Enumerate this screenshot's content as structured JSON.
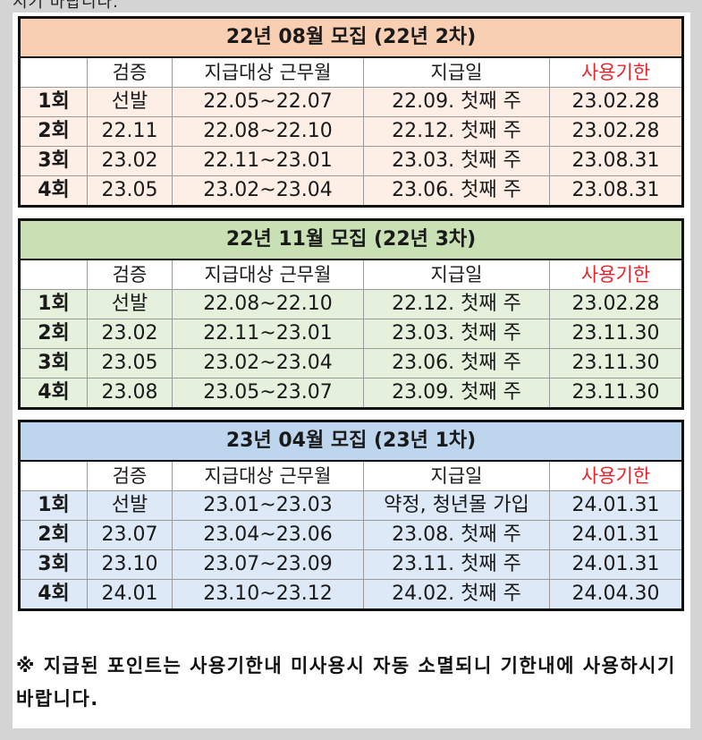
{
  "top_text": "시기 바랍니다.",
  "headers": [
    "검증",
    "지급대상 근무월",
    "지급일",
    "사용기한"
  ],
  "tables": [
    {
      "title": "22년 08월 모집 (22년 2차)",
      "rows": [
        [
          "1회",
          "선발",
          "22.05~22.07",
          "22.09. 첫째 주",
          "23.02.28"
        ],
        [
          "2회",
          "22.11",
          "22.08~22.10",
          "22.12. 첫째 주",
          "23.02.28"
        ],
        [
          "3회",
          "23.02",
          "22.11~23.01",
          "23.03. 첫째 주",
          "23.08.31"
        ],
        [
          "4회",
          "23.05",
          "23.02~23.04",
          "23.06. 첫째 주",
          "23.08.31"
        ]
      ]
    },
    {
      "title": "22년 11월 모집 (22년 3차)",
      "rows": [
        [
          "1회",
          "선발",
          "22.08~22.10",
          "22.12. 첫째 주",
          "23.02.28"
        ],
        [
          "2회",
          "23.02",
          "22.11~23.01",
          "23.03. 첫째 주",
          "23.11.30"
        ],
        [
          "3회",
          "23.05",
          "23.02~23.04",
          "23.06. 첫째 주",
          "23.11.30"
        ],
        [
          "4회",
          "23.08",
          "23.05~23.07",
          "23.09. 첫째 주",
          "23.11.30"
        ]
      ]
    },
    {
      "title": "23년 04월 모집 (23년 1차)",
      "rows": [
        [
          "1회",
          "선발",
          "23.01~23.03",
          "약정, 청년몰 가입",
          "24.01.31"
        ],
        [
          "2회",
          "23.07",
          "23.04~23.06",
          "23.08. 첫째 주",
          "24.01.31"
        ],
        [
          "3회",
          "23.10",
          "23.07~23.09",
          "23.11. 첫째 주",
          "24.01.31"
        ],
        [
          "4회",
          "24.01",
          "23.10~23.12",
          "24.02. 첫째 주",
          "24.04.30"
        ]
      ]
    }
  ],
  "note": "※ 지급된 포인트는 사용기한내 미사용시 자동 소멸되니 기한내에 사용하시기 바랍니다.",
  "colors": {
    "limit_header": "#e8232a",
    "table1_title": "#f9cfb3",
    "table1_rows": "#fdeee6",
    "table2_title": "#c9e0b5",
    "table2_rows": "#e6f1dd",
    "table3_title": "#bdd6ee",
    "table3_rows": "#dde9f6"
  }
}
